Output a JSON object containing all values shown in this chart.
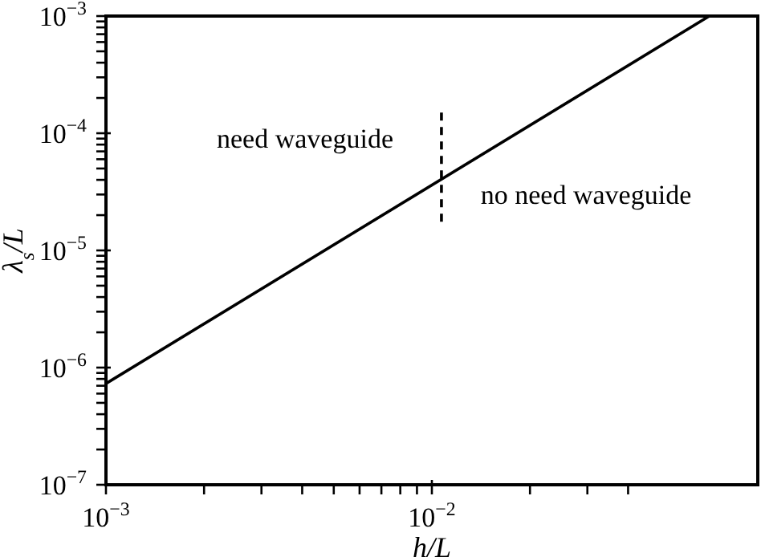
{
  "chart_data": {
    "type": "line",
    "log": "xy",
    "xlabel": "h/L",
    "ylabel": "λ$_{s}$/L",
    "xlim": [
      0.001,
      0.1
    ],
    "ylim": [
      1e-07,
      0.001
    ],
    "xticks": [
      {
        "value": 0.001,
        "label": "10$^{−3}$"
      },
      {
        "value": 0.002,
        "label": null
      },
      {
        "value": 0.003,
        "label": null
      },
      {
        "value": 0.004,
        "label": null
      },
      {
        "value": 0.005,
        "label": null
      },
      {
        "value": 0.006,
        "label": null
      },
      {
        "value": 0.007,
        "label": null
      },
      {
        "value": 0.008,
        "label": null
      },
      {
        "value": 0.009,
        "label": null
      },
      {
        "value": 0.01,
        "label": "10$^{−2}$"
      },
      {
        "value": 0.02,
        "label": null
      },
      {
        "value": 0.03,
        "label": null
      },
      {
        "value": 0.04,
        "label": null
      }
    ],
    "yticks": [
      {
        "value": 1e-07,
        "label": "10$^{−7}$"
      },
      {
        "value": 2e-07,
        "label": null
      },
      {
        "value": 3e-07,
        "label": null
      },
      {
        "value": 4e-07,
        "label": null
      },
      {
        "value": 5e-07,
        "label": null
      },
      {
        "value": 6e-07,
        "label": null
      },
      {
        "value": 7e-07,
        "label": null
      },
      {
        "value": 8e-07,
        "label": null
      },
      {
        "value": 9e-07,
        "label": null
      },
      {
        "value": 1e-06,
        "label": "10$^{−6}$"
      },
      {
        "value": 2e-06,
        "label": null
      },
      {
        "value": 3e-06,
        "label": null
      },
      {
        "value": 4e-06,
        "label": null
      },
      {
        "value": 5e-06,
        "label": null
      },
      {
        "value": 6e-06,
        "label": null
      },
      {
        "value": 7e-06,
        "label": null
      },
      {
        "value": 8e-06,
        "label": null
      },
      {
        "value": 9e-06,
        "label": null
      },
      {
        "value": 1e-05,
        "label": "10$^{−5}$"
      },
      {
        "value": 2e-05,
        "label": null
      },
      {
        "value": 3e-05,
        "label": null
      },
      {
        "value": 4e-05,
        "label": null
      },
      {
        "value": 5e-05,
        "label": null
      },
      {
        "value": 6e-05,
        "label": null
      },
      {
        "value": 7e-05,
        "label": null
      },
      {
        "value": 8e-05,
        "label": null
      },
      {
        "value": 9e-05,
        "label": null
      },
      {
        "value": 0.0001,
        "label": "10$^{−4}$"
      },
      {
        "value": 0.0002,
        "label": null
      },
      {
        "value": 0.0003,
        "label": null
      },
      {
        "value": 0.0004,
        "label": null
      },
      {
        "value": 0.0005,
        "label": null
      },
      {
        "value": 0.0006,
        "label": null
      },
      {
        "value": 0.0007,
        "label": null
      },
      {
        "value": 0.0008,
        "label": null
      },
      {
        "value": 0.0009,
        "label": null
      },
      {
        "value": 0.001,
        "label": "10$^{−3}$"
      }
    ],
    "series": [
      {
        "color": "#000000",
        "x": [
          0.001,
          0.071
        ],
        "values": [
          7.3e-07,
          0.001
        ]
      },
      {
        "color": "#000000",
        "line_style": "dashed",
        "x": [
          0.0107,
          0.0107
        ],
        "values": [
          0.00015,
          1.7e-05
        ]
      }
    ],
    "annotations": [
      "need waveguide",
      "no need waveguide"
    ]
  }
}
